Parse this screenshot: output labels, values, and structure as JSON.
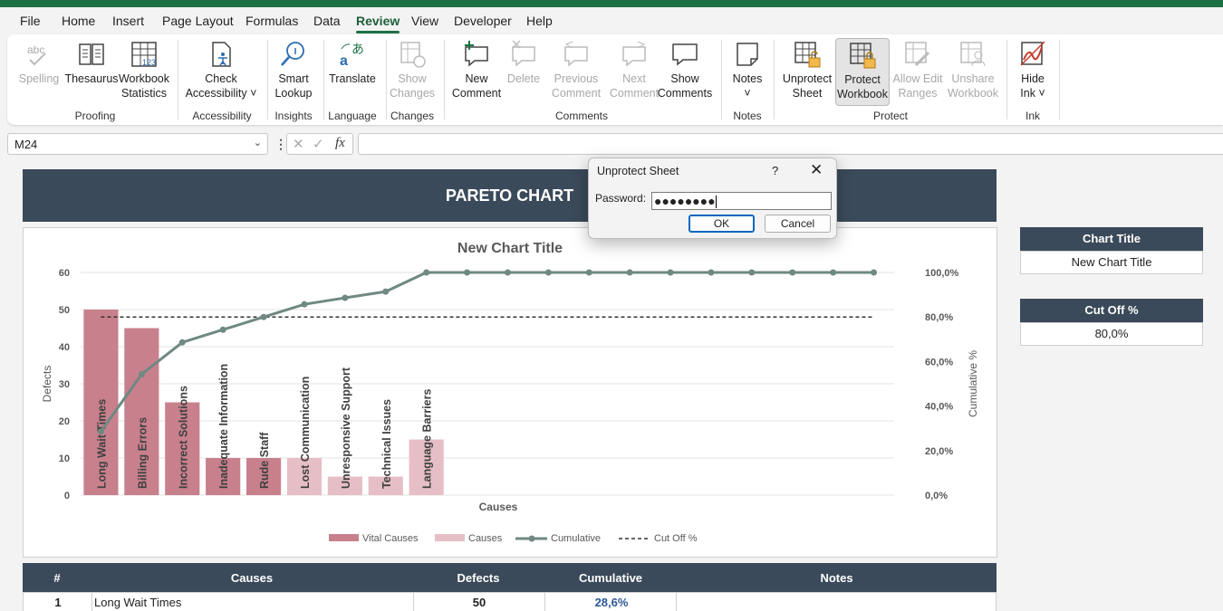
{
  "menu": [
    "File",
    "Home",
    "Insert",
    "Page Layout",
    "Formulas",
    "Data",
    "Review",
    "View",
    "Developer",
    "Help"
  ],
  "active_menu": "Review",
  "ribbon": {
    "buttons": [
      {
        "id": "spelling",
        "line1": "Spelling",
        "line2": "",
        "disabled": true,
        "icon": "spelling-icon"
      },
      {
        "id": "thesaurus",
        "line1": "Thesaurus",
        "line2": "",
        "disabled": false,
        "icon": "thesaurus-icon"
      },
      {
        "id": "workbook-statistics",
        "line1": "Workbook",
        "line2": "Statistics",
        "disabled": false,
        "icon": "statistics-icon"
      },
      {
        "id": "check-accessibility",
        "line1": "Check",
        "line2": "Accessibility ˅",
        "disabled": false,
        "icon": "accessibility-icon"
      },
      {
        "id": "smart-lookup",
        "line1": "Smart",
        "line2": "Lookup",
        "disabled": false,
        "icon": "smart-lookup-icon"
      },
      {
        "id": "translate",
        "line1": "Translate",
        "line2": "",
        "disabled": false,
        "icon": "translate-icon"
      },
      {
        "id": "show-changes",
        "line1": "Show",
        "line2": "Changes",
        "disabled": true,
        "icon": "show-changes-icon"
      },
      {
        "id": "new-comment",
        "line1": "New",
        "line2": "Comment",
        "disabled": false,
        "icon": "new-comment-icon"
      },
      {
        "id": "delete",
        "line1": "Delete",
        "line2": "",
        "disabled": true,
        "icon": "delete-comment-icon"
      },
      {
        "id": "previous-comment",
        "line1": "Previous",
        "line2": "Comment",
        "disabled": true,
        "icon": "previous-comment-icon"
      },
      {
        "id": "next-comment",
        "line1": "Next",
        "line2": "Comment",
        "disabled": true,
        "icon": "next-comment-icon"
      },
      {
        "id": "show-comments",
        "line1": "Show",
        "line2": "Comments",
        "disabled": false,
        "icon": "show-comments-icon"
      },
      {
        "id": "notes",
        "line1": "Notes",
        "line2": "˅",
        "disabled": false,
        "icon": "notes-icon"
      },
      {
        "id": "unprotect-sheet",
        "line1": "Unprotect",
        "line2": "Sheet",
        "disabled": false,
        "icon": "unprotect-sheet-icon"
      },
      {
        "id": "protect-workbook",
        "line1": "Protect",
        "line2": "Workbook",
        "disabled": false,
        "icon": "protect-workbook-icon",
        "pressed": true
      },
      {
        "id": "allow-edit-ranges",
        "line1": "Allow Edit",
        "line2": "Ranges",
        "disabled": true,
        "icon": "allow-edit-ranges-icon"
      },
      {
        "id": "unshare-workbook",
        "line1": "Unshare",
        "line2": "Workbook",
        "disabled": true,
        "icon": "unshare-workbook-icon"
      },
      {
        "id": "hide-ink",
        "line1": "Hide",
        "line2": "Ink ˅",
        "disabled": false,
        "icon": "hide-ink-icon"
      }
    ],
    "groups": [
      "Proofing",
      "Accessibility",
      "Insights",
      "Language",
      "Changes",
      "Comments",
      "Notes",
      "Protect",
      "Ink"
    ]
  },
  "formula_bar": {
    "name_box": "M24",
    "fx": "fx",
    "formula": ""
  },
  "sheet": {
    "banner_title": "PARETO CHART",
    "side": {
      "chart_title_label": "Chart Title",
      "chart_title_value": "New Chart Title",
      "cutoff_label": "Cut Off %",
      "cutoff_value": "80,0%"
    },
    "table": {
      "headers": [
        "#",
        "Causes",
        "Defects",
        "Cumulative",
        "Notes"
      ],
      "rows": [
        {
          "num": "1",
          "cause": "Long Wait Times",
          "defects": "50",
          "cumulative": "28,6%"
        }
      ]
    }
  },
  "chart_data": {
    "type": "bar",
    "title": "New Chart Title",
    "xlabel": "Causes",
    "ylabel": "Defects",
    "y2label": "Cumulative %",
    "ylim": [
      0,
      60
    ],
    "y2lim": [
      0,
      100
    ],
    "yticks": [
      "0",
      "10",
      "20",
      "30",
      "40",
      "50",
      "60"
    ],
    "y2ticks": [
      "0,0%",
      "20,0%",
      "40,0%",
      "60,0%",
      "80,0%",
      "100,0%"
    ],
    "categories": [
      "Long Wait Times",
      "Billing Errors",
      "Incorrect Solutions",
      "Inadequate Information",
      "Rude Staff",
      "Lost Communication",
      "Unresponsive Support",
      "Technical Issues",
      "Language Barriers",
      "",
      "",
      "",
      "",
      "",
      "",
      "",
      "",
      "",
      "",
      ""
    ],
    "series": [
      {
        "name": "Vital Causes",
        "values": [
          50,
          45,
          25,
          10,
          10,
          0,
          0,
          0,
          0,
          0,
          0,
          0,
          0,
          0,
          0,
          0,
          0,
          0,
          0,
          0
        ],
        "color": "#c8808d"
      },
      {
        "name": "Causes",
        "values": [
          0,
          0,
          0,
          0,
          0,
          10,
          5,
          5,
          15,
          0,
          0,
          0,
          0,
          0,
          0,
          0,
          0,
          0,
          0,
          0
        ],
        "color": "#e6bfc6"
      },
      {
        "name": "Cumulative",
        "values": [
          28.6,
          54.3,
          68.6,
          74.3,
          80.0,
          85.7,
          88.6,
          91.4,
          100,
          100,
          100,
          100,
          100,
          100,
          100,
          100,
          100,
          100,
          100,
          100
        ],
        "color": "#6f8983"
      },
      {
        "name": "Cut Off %",
        "values": [
          80,
          80,
          80,
          80,
          80,
          80,
          80,
          80,
          80,
          80,
          80,
          80,
          80,
          80,
          80,
          80,
          80,
          80,
          80,
          80
        ],
        "color": "#333333"
      }
    ],
    "legend_position": "bottom",
    "grid": true
  },
  "dialog": {
    "title": "Unprotect Sheet",
    "help": "?",
    "close": "✕",
    "password_label": "Password:",
    "password_value": "●●●●●●●●",
    "ok_label": "OK",
    "cancel_label": "Cancel"
  }
}
